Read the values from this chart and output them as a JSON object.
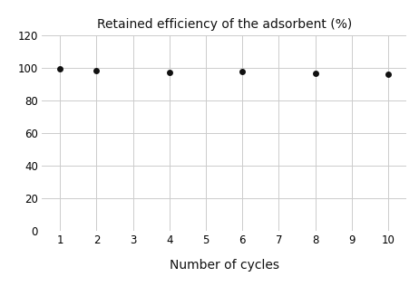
{
  "title": "Retained efficiency of the adsorbent (%)",
  "xlabel": "Number of cycles",
  "ylabel": "",
  "x_values": [
    1,
    2,
    4,
    6,
    8,
    10
  ],
  "y_values": [
    99.5,
    98.5,
    97.5,
    97.8,
    96.8,
    96.5
  ],
  "xlim": [
    0.5,
    10.5
  ],
  "ylim": [
    0,
    120
  ],
  "xticks": [
    1,
    2,
    3,
    4,
    5,
    6,
    7,
    8,
    9,
    10
  ],
  "yticks": [
    0,
    20,
    40,
    60,
    80,
    100,
    120
  ],
  "marker_color": "#111111",
  "marker_size": 25,
  "grid_color": "#cccccc",
  "grid_linewidth": 0.7,
  "background_color": "#ffffff",
  "title_fontsize": 10,
  "xlabel_fontsize": 10,
  "tick_fontsize": 8.5,
  "xlabel_labelpad": 10
}
